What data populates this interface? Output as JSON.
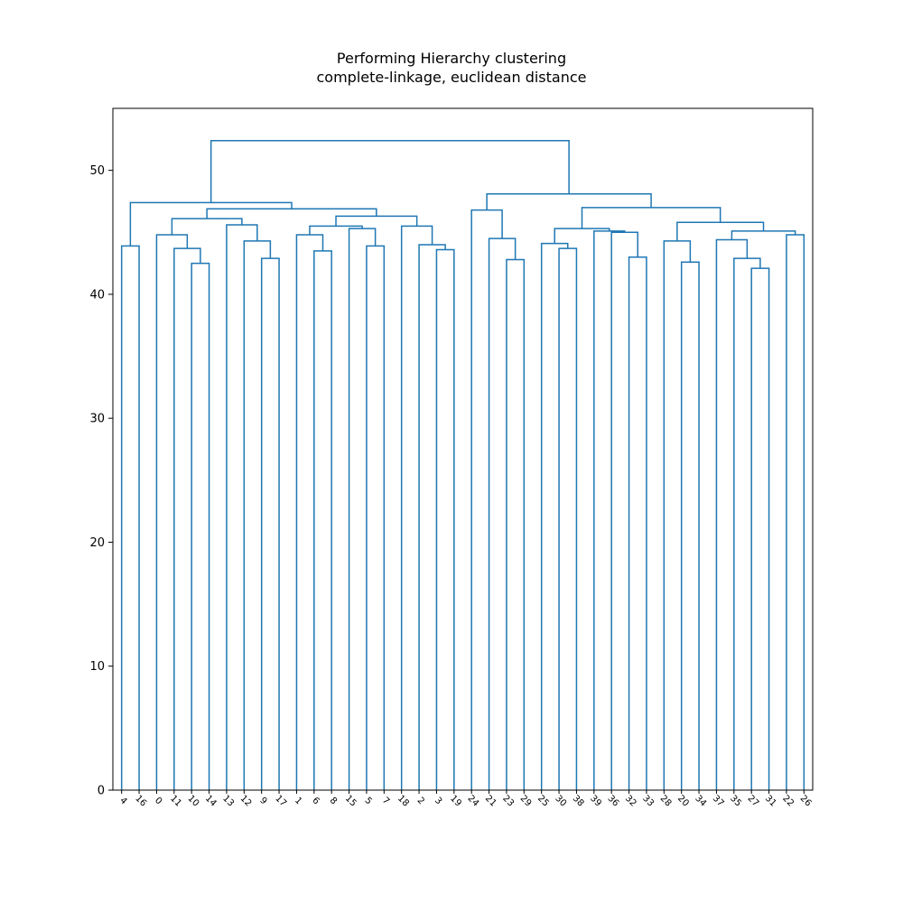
{
  "title": {
    "line1": "Performing Hierarchy clustering",
    "line2": "complete-linkage, euclidean distance"
  },
  "colors": {
    "link": "#1f77b4",
    "axis": "#000000",
    "background": "#ffffff"
  },
  "chart_data": {
    "type": "dendrogram",
    "title": "Performing Hierarchy clustering\ncomplete-linkage, euclidean distance",
    "xlabel": "",
    "ylabel": "",
    "ylim": [
      0,
      55
    ],
    "y_ticks": [
      0,
      10,
      20,
      30,
      40,
      50
    ],
    "grid": false,
    "leaves": [
      "4",
      "16",
      "0",
      "11",
      "10",
      "14",
      "13",
      "12",
      "9",
      "17",
      "1",
      "6",
      "8",
      "15",
      "5",
      "7",
      "18",
      "2",
      "3",
      "19",
      "24",
      "21",
      "23",
      "29",
      "25",
      "30",
      "38",
      "39",
      "36",
      "32",
      "33",
      "28",
      "20",
      "34",
      "37",
      "35",
      "27",
      "31",
      "22",
      "26"
    ],
    "merges": [
      {
        "a": [
          "4"
        ],
        "b": [
          "16"
        ],
        "height": 43.9
      },
      {
        "a": [
          "10"
        ],
        "b": [
          "14"
        ],
        "height": 42.5
      },
      {
        "a": [
          "11"
        ],
        "b": [
          "10",
          "14"
        ],
        "height": 43.7
      },
      {
        "a": [
          "0"
        ],
        "b": [
          "11",
          "10",
          "14"
        ],
        "height": 44.8
      },
      {
        "a": [
          "9"
        ],
        "b": [
          "17"
        ],
        "height": 42.9
      },
      {
        "a": [
          "12"
        ],
        "b": [
          "9",
          "17"
        ],
        "height": 44.3
      },
      {
        "a": [
          "13"
        ],
        "b": [
          "12",
          "9",
          "17"
        ],
        "height": 45.6
      },
      {
        "a": [
          "0",
          "11",
          "10",
          "14"
        ],
        "b": [
          "13",
          "12",
          "9",
          "17"
        ],
        "height": 46.1
      },
      {
        "a": [
          "6"
        ],
        "b": [
          "8"
        ],
        "height": 43.5
      },
      {
        "a": [
          "1"
        ],
        "b": [
          "6",
          "8"
        ],
        "height": 44.8
      },
      {
        "a": [
          "5"
        ],
        "b": [
          "7"
        ],
        "height": 43.9
      },
      {
        "a": [
          "15"
        ],
        "b": [
          "5",
          "7"
        ],
        "height": 45.3
      },
      {
        "a": [
          "1",
          "6",
          "8"
        ],
        "b": [
          "15",
          "5",
          "7"
        ],
        "height": 45.5
      },
      {
        "a": [
          "3"
        ],
        "b": [
          "19"
        ],
        "height": 43.6
      },
      {
        "a": [
          "2"
        ],
        "b": [
          "3",
          "19"
        ],
        "height": 44.0
      },
      {
        "a": [
          "18"
        ],
        "b": [
          "2",
          "3",
          "19"
        ],
        "height": 45.5
      },
      {
        "a": [
          "1",
          "6",
          "8",
          "15",
          "5",
          "7"
        ],
        "b": [
          "18",
          "2",
          "3",
          "19"
        ],
        "height": 46.3
      },
      {
        "a": [
          "0",
          "11",
          "10",
          "14",
          "13",
          "12",
          "9",
          "17"
        ],
        "b": [
          "1",
          "6",
          "8",
          "15",
          "5",
          "7",
          "18",
          "2",
          "3",
          "19"
        ],
        "height": 46.9
      },
      {
        "a": [
          "4",
          "16"
        ],
        "b": [
          "0",
          "11",
          "10",
          "14",
          "13",
          "12",
          "9",
          "17",
          "1",
          "6",
          "8",
          "15",
          "5",
          "7",
          "18",
          "2",
          "3",
          "19"
        ],
        "height": 47.4
      },
      {
        "a": [
          "23"
        ],
        "b": [
          "29"
        ],
        "height": 42.8
      },
      {
        "a": [
          "21"
        ],
        "b": [
          "23",
          "29"
        ],
        "height": 44.5
      },
      {
        "a": [
          "24"
        ],
        "b": [
          "21",
          "23",
          "29"
        ],
        "height": 46.8
      },
      {
        "a": [
          "30"
        ],
        "b": [
          "38"
        ],
        "height": 43.7
      },
      {
        "a": [
          "25"
        ],
        "b": [
          "30",
          "38"
        ],
        "height": 44.1
      },
      {
        "a": [
          "32"
        ],
        "b": [
          "33"
        ],
        "height": 43.0
      },
      {
        "a": [
          "36"
        ],
        "b": [
          "32",
          "33"
        ],
        "height": 45.0
      },
      {
        "a": [
          "39"
        ],
        "b": [
          "36",
          "32",
          "33"
        ],
        "height": 45.1
      },
      {
        "a": [
          "25",
          "30",
          "38"
        ],
        "b": [
          "39",
          "36",
          "32",
          "33"
        ],
        "height": 45.3
      },
      {
        "a": [
          "20"
        ],
        "b": [
          "34"
        ],
        "height": 42.6
      },
      {
        "a": [
          "28"
        ],
        "b": [
          "20",
          "34"
        ],
        "height": 44.3
      },
      {
        "a": [
          "27"
        ],
        "b": [
          "31"
        ],
        "height": 42.1
      },
      {
        "a": [
          "35"
        ],
        "b": [
          "27",
          "31"
        ],
        "height": 42.9
      },
      {
        "a": [
          "37"
        ],
        "b": [
          "35",
          "27",
          "31"
        ],
        "height": 44.4
      },
      {
        "a": [
          "22"
        ],
        "b": [
          "26"
        ],
        "height": 44.8
      },
      {
        "a": [
          "37",
          "35",
          "27",
          "31"
        ],
        "b": [
          "22",
          "26"
        ],
        "height": 45.1
      },
      {
        "a": [
          "28",
          "20",
          "34"
        ],
        "b": [
          "37",
          "35",
          "27",
          "31",
          "22",
          "26"
        ],
        "height": 45.8
      },
      {
        "a": [
          "25",
          "30",
          "38",
          "39",
          "36",
          "32",
          "33"
        ],
        "b": [
          "28",
          "20",
          "34",
          "37",
          "35",
          "27",
          "31",
          "22",
          "26"
        ],
        "height": 47.0
      },
      {
        "a": [
          "24",
          "21",
          "23",
          "29"
        ],
        "b": [
          "25",
          "30",
          "38",
          "39",
          "36",
          "32",
          "33",
          "28",
          "20",
          "34",
          "37",
          "35",
          "27",
          "31",
          "22",
          "26"
        ],
        "height": 48.1
      },
      {
        "a": [
          "4",
          "16",
          "0",
          "11",
          "10",
          "14",
          "13",
          "12",
          "9",
          "17",
          "1",
          "6",
          "8",
          "15",
          "5",
          "7",
          "18",
          "2",
          "3",
          "19"
        ],
        "b": [
          "24",
          "21",
          "23",
          "29",
          "25",
          "30",
          "38",
          "39",
          "36",
          "32",
          "33",
          "28",
          "20",
          "34",
          "37",
          "35",
          "27",
          "31",
          "22",
          "26"
        ],
        "height": 52.4
      }
    ]
  }
}
